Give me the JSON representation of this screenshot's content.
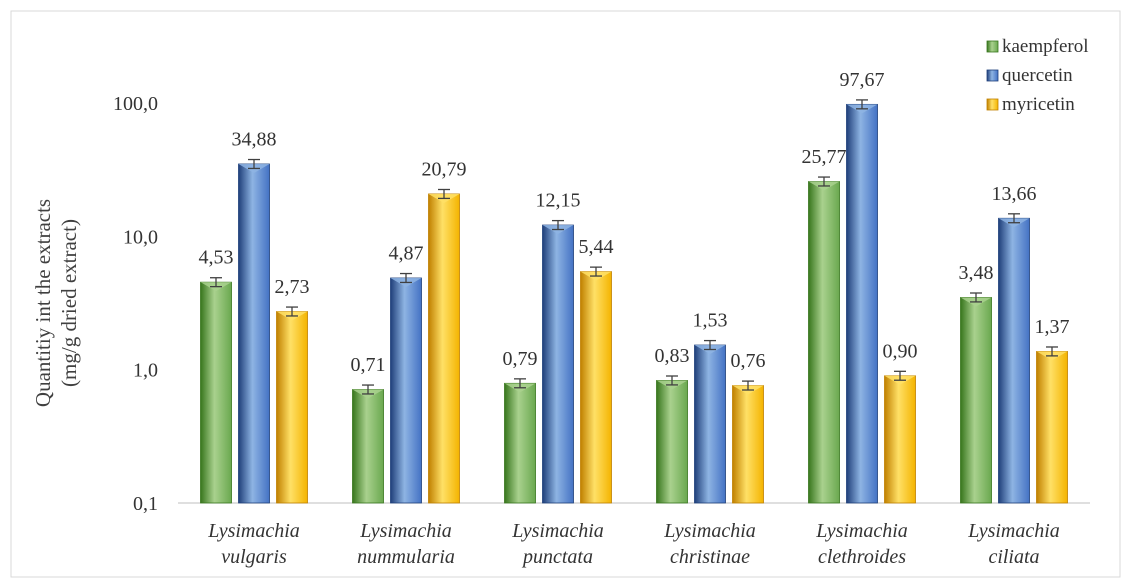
{
  "chart_data": {
    "type": "bar",
    "title": "",
    "ylabel_lines": [
      "Quantitiy int the extracts",
      "(mg/g dried extract)"
    ],
    "xlabel": "",
    "yscale": "log",
    "ylim": [
      0.1,
      100
    ],
    "yticks": [
      {
        "value": 0.1,
        "label": "0,1"
      },
      {
        "value": 1,
        "label": "1,0"
      },
      {
        "value": 10,
        "label": "10,0"
      },
      {
        "value": 100,
        "label": "100,0"
      }
    ],
    "categories": [
      [
        "Lysimachia",
        "vulgaris"
      ],
      [
        "Lysimachia",
        "nummularia"
      ],
      [
        "Lysimachia",
        "punctata"
      ],
      [
        "Lysimachia",
        "christinae"
      ],
      [
        "Lysimachia",
        "clethroides"
      ],
      [
        "Lysimachia",
        "ciliata"
      ]
    ],
    "series": [
      {
        "name": "kaempferol",
        "color": "#6aa84f",
        "color_light": "#a9d18e",
        "color_dark": "#38761d",
        "values": [
          4.53,
          0.71,
          0.79,
          0.83,
          25.77,
          3.48
        ],
        "labels": [
          "4,53",
          "0,71",
          "0,79",
          "0,83",
          "25,77",
          "3,48"
        ]
      },
      {
        "name": "quercetin",
        "color": "#4472c4",
        "color_light": "#8eb4e3",
        "color_dark": "#1f3f7a",
        "values": [
          34.88,
          4.87,
          12.15,
          1.53,
          97.67,
          13.66
        ],
        "labels": [
          "34,88",
          "4,87",
          "12,15",
          "1,53",
          "97,67",
          "13,66"
        ]
      },
      {
        "name": "myricetin",
        "color": "#f4b400",
        "color_light": "#ffe066",
        "color_dark": "#c08000",
        "values": [
          2.73,
          20.79,
          5.44,
          0.76,
          0.9,
          1.37
        ],
        "labels": [
          "2,73",
          "20,79",
          "5,44",
          "0,76",
          "0,90",
          "1,37"
        ]
      }
    ],
    "error_bars": true,
    "legend_position": "top-right",
    "grid": false
  }
}
